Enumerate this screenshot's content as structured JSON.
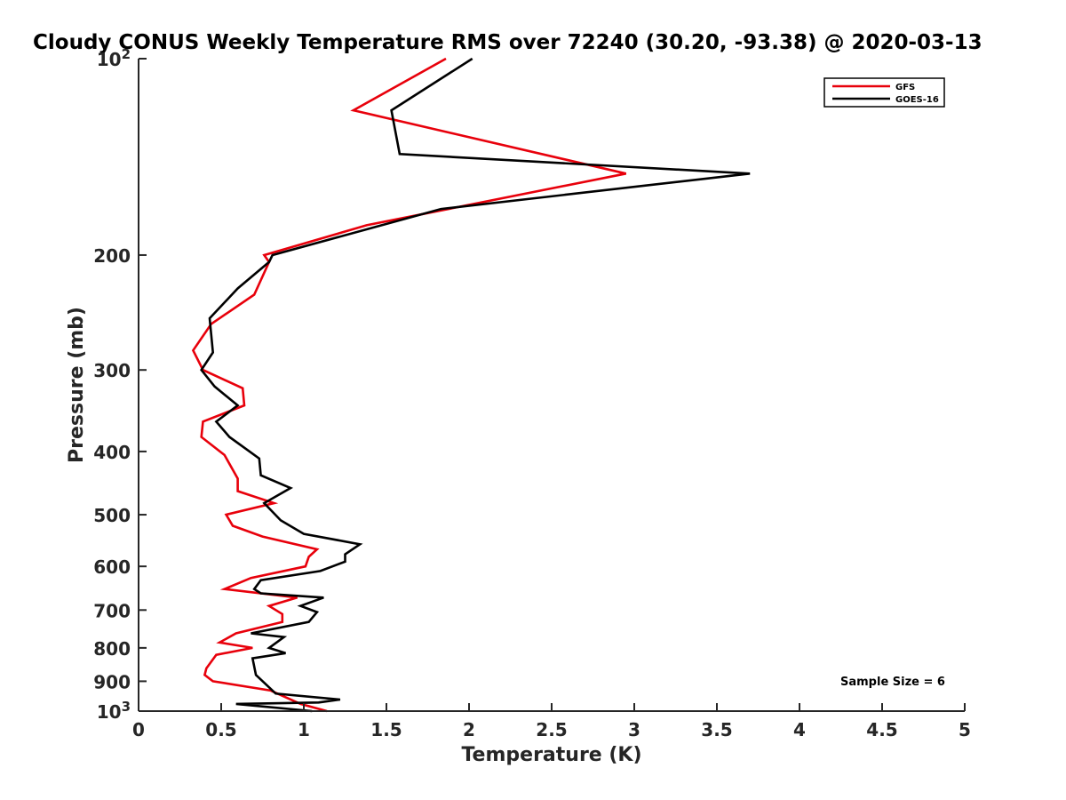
{
  "chart_data": {
    "type": "line",
    "title": "Cloudy CONUS Weekly Temperature RMS over 72240 (30.20, -93.38) @ 2020-03-13",
    "xlabel": "Temperature (K)",
    "ylabel": "Pressure (mb)",
    "xlim": [
      0,
      5
    ],
    "ylim": [
      100,
      1000
    ],
    "yscale": "log",
    "yreversed": true,
    "grid": false,
    "legend_position": "top-right",
    "x_ticks": [
      0,
      0.5,
      1,
      1.5,
      2,
      2.5,
      3,
      3.5,
      4,
      4.5,
      5
    ],
    "x_tick_labels": [
      "0",
      "0.5",
      "1",
      "1.5",
      "2",
      "2.5",
      "3",
      "3.5",
      "4",
      "4.5",
      "5"
    ],
    "y_ticks": [
      100,
      200,
      300,
      400,
      500,
      600,
      700,
      800,
      900,
      1000
    ],
    "y_tick_labels": [
      "10^2",
      "200",
      "300",
      "400",
      "500",
      "600",
      "700",
      "800",
      "900",
      "10^3"
    ],
    "annotation": "Sample Size = 6",
    "series": [
      {
        "name": "GFS",
        "color": "#e8000b",
        "x": [
          1.86,
          1.3,
          2.95,
          1.38,
          0.76,
          0.79,
          0.7,
          0.44,
          0.33,
          0.39,
          0.63,
          0.64,
          0.39,
          0.38,
          0.52,
          0.6,
          0.6,
          0.82,
          0.53,
          0.57,
          0.75,
          1.08,
          1.03,
          1.01,
          0.68,
          0.52,
          0.96,
          0.79,
          0.87,
          0.87,
          0.59,
          0.49,
          0.69,
          0.47,
          0.41,
          0.4,
          0.45,
          0.8,
          0.98,
          1.14
        ],
        "y": [
          100,
          120,
          150,
          180,
          200,
          205,
          230,
          255,
          280,
          300,
          320,
          340,
          360,
          380,
          405,
          440,
          460,
          480,
          500,
          520,
          540,
          565,
          580,
          600,
          625,
          650,
          670,
          690,
          710,
          730,
          760,
          785,
          800,
          820,
          860,
          880,
          900,
          930,
          975,
          1000
        ]
      },
      {
        "name": "GOES-16",
        "color": "#000000",
        "x": [
          2.02,
          1.53,
          1.58,
          3.7,
          1.83,
          0.81,
          0.79,
          0.6,
          0.43,
          0.44,
          0.45,
          0.38,
          0.46,
          0.6,
          0.47,
          0.55,
          0.73,
          0.74,
          0.92,
          0.76,
          0.86,
          1.0,
          1.34,
          1.25,
          1.25,
          1.1,
          0.74,
          0.7,
          0.74,
          1.12,
          0.98,
          1.08,
          1.03,
          0.68,
          0.88,
          0.79,
          0.89,
          0.69,
          0.71,
          0.83,
          1.22,
          1.09,
          0.59,
          1.05
        ],
        "y": [
          100,
          120,
          140,
          150,
          170,
          200,
          205,
          225,
          250,
          265,
          282,
          300,
          318,
          340,
          360,
          380,
          410,
          435,
          455,
          480,
          510,
          535,
          555,
          575,
          590,
          610,
          630,
          650,
          660,
          670,
          690,
          705,
          730,
          760,
          770,
          800,
          815,
          830,
          880,
          940,
          960,
          970,
          975,
          1000
        ]
      }
    ]
  }
}
